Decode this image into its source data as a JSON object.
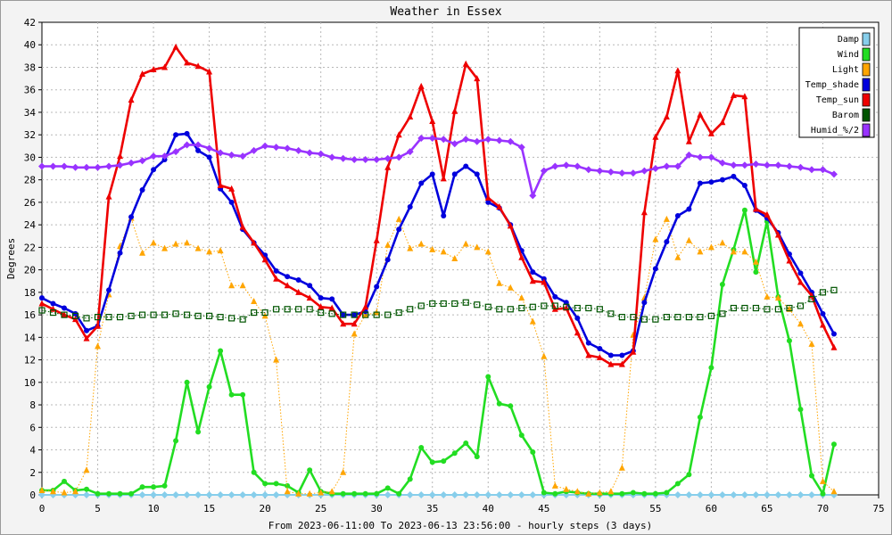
{
  "chart_data": {
    "type": "line",
    "title": "Weather in Essex",
    "xlabel": "From 2023-06-11:00 To 2023-06-13 23:56:00 - hourly steps (3 days)",
    "ylabel": "Degrees",
    "xlim": [
      0,
      75
    ],
    "ylim": [
      0,
      42
    ],
    "x_ticks": [
      0,
      5,
      10,
      15,
      20,
      25,
      30,
      35,
      40,
      45,
      50,
      55,
      60,
      65,
      70,
      75
    ],
    "y_ticks": [
      0,
      2,
      4,
      6,
      8,
      10,
      12,
      14,
      16,
      18,
      20,
      22,
      24,
      26,
      28,
      30,
      32,
      34,
      36,
      38,
      40,
      42
    ],
    "grid": true,
    "legend_position": "top-right",
    "x": [
      0,
      1,
      2,
      3,
      4,
      5,
      6,
      7,
      8,
      9,
      10,
      11,
      12,
      13,
      14,
      15,
      16,
      17,
      18,
      19,
      20,
      21,
      22,
      23,
      24,
      25,
      26,
      27,
      28,
      29,
      30,
      31,
      32,
      33,
      34,
      35,
      36,
      37,
      38,
      39,
      40,
      41,
      42,
      43,
      44,
      45,
      46,
      47,
      48,
      49,
      50,
      51,
      52,
      53,
      54,
      55,
      56,
      57,
      58,
      59,
      60,
      61,
      62,
      63,
      64,
      65,
      66,
      67,
      68,
      69,
      70,
      71
    ],
    "series": [
      {
        "name": "Damp",
        "color": "#87ceeb",
        "style": "solid",
        "marker": "diamond",
        "values": [
          0,
          0,
          0,
          0,
          0,
          0,
          0,
          0,
          0,
          0,
          0,
          0,
          0,
          0,
          0,
          0,
          0,
          0,
          0,
          0,
          0,
          0,
          0,
          0,
          0,
          0,
          0,
          0,
          0,
          0,
          0,
          0,
          0,
          0,
          0,
          0,
          0,
          0,
          0,
          0,
          0,
          0,
          0,
          0,
          0,
          0,
          0,
          0,
          0,
          0,
          0,
          0,
          0,
          0,
          0,
          0,
          0,
          0,
          0,
          0,
          0,
          0,
          0,
          0,
          0,
          0,
          0,
          0,
          0,
          0,
          0,
          0
        ]
      },
      {
        "name": "Wind",
        "color": "#22dd22",
        "style": "solid",
        "marker": "circle",
        "values": [
          0.4,
          0.4,
          1.2,
          0.4,
          0.5,
          0.1,
          0.1,
          0.1,
          0.1,
          0.7,
          0.7,
          0.8,
          4.8,
          10.0,
          5.6,
          9.6,
          12.8,
          8.9,
          8.9,
          2.0,
          1.0,
          1.0,
          0.8,
          0.2,
          2.2,
          0.3,
          0.1,
          0.1,
          0.1,
          0.1,
          0.1,
          0.6,
          0.1,
          1.4,
          4.2,
          2.9,
          3.0,
          3.7,
          4.6,
          3.4,
          10.5,
          8.1,
          7.9,
          5.3,
          3.8,
          0.2,
          0.1,
          0.3,
          0.2,
          0.1,
          0.1,
          0.1,
          0.1,
          0.2,
          0.1,
          0.1,
          0.2,
          1.0,
          1.8,
          6.9,
          11.3,
          18.7,
          21.8,
          25.3,
          19.8,
          24.3,
          17.6,
          13.7,
          7.6,
          1.7,
          0.1,
          4.5
        ]
      },
      {
        "name": "Light",
        "color": "#ffa500",
        "style": "dotted",
        "marker": "triangle",
        "values": [
          0.4,
          0.3,
          0.2,
          0.3,
          2.2,
          13.2,
          17.8,
          22.1,
          24.6,
          21.5,
          22.4,
          21.9,
          22.3,
          22.4,
          21.9,
          21.6,
          21.7,
          18.6,
          18.6,
          17.2,
          15.9,
          12.0,
          0.3,
          0.1,
          0.1,
          0.2,
          0.3,
          2.0,
          14.3,
          16.0,
          16.2,
          22.2,
          24.5,
          21.9,
          22.3,
          21.8,
          21.6,
          21.0,
          22.3,
          22.0,
          21.6,
          18.8,
          18.4,
          17.5,
          15.4,
          12.3,
          0.8,
          0.5,
          0.3,
          0.1,
          0.2,
          0.3,
          2.4,
          14.2,
          17.5,
          22.7,
          24.5,
          21.1,
          22.6,
          21.6,
          22.0,
          22.4,
          21.6,
          21.6,
          20.7,
          17.6,
          17.5,
          16.5,
          15.2,
          13.4,
          1.2,
          0.3
        ]
      },
      {
        "name": "Temp_shade",
        "color": "#0000dd",
        "style": "solid",
        "marker": "circle",
        "values": [
          17.5,
          17.0,
          16.6,
          16.1,
          14.6,
          15.0,
          18.2,
          21.5,
          24.7,
          27.1,
          28.9,
          29.8,
          32.0,
          32.1,
          30.6,
          30.0,
          27.2,
          26.0,
          23.6,
          22.4,
          21.3,
          19.9,
          19.4,
          19.1,
          18.6,
          17.5,
          17.4,
          16.0,
          16.0,
          16.3,
          18.5,
          20.9,
          23.6,
          25.6,
          27.7,
          28.5,
          24.8,
          28.5,
          29.2,
          28.5,
          26.0,
          25.5,
          24.0,
          21.7,
          19.8,
          19.2,
          17.6,
          17.1,
          15.7,
          13.5,
          13.0,
          12.4,
          12.4,
          12.8,
          17.1,
          20.1,
          22.5,
          24.8,
          25.4,
          27.7,
          27.8,
          28.0,
          28.3,
          27.5,
          25.3,
          24.6,
          23.3,
          21.4,
          19.7,
          18.0,
          16.1,
          14.3
        ]
      },
      {
        "name": "Temp_sun",
        "color": "#ee0000",
        "style": "solid",
        "marker": "triangle",
        "values": [
          17.0,
          16.5,
          16.0,
          15.6,
          13.9,
          15.0,
          26.5,
          30.1,
          35.1,
          37.4,
          37.8,
          38.0,
          39.8,
          38.4,
          38.1,
          37.6,
          27.5,
          27.2,
          23.8,
          22.4,
          20.9,
          19.2,
          18.6,
          18.0,
          17.5,
          16.7,
          16.6,
          15.2,
          15.2,
          16.7,
          22.6,
          29.1,
          32.0,
          33.6,
          36.3,
          33.2,
          28.1,
          34.1,
          38.3,
          37.0,
          26.4,
          25.6,
          23.9,
          21.1,
          19.0,
          18.9,
          16.5,
          16.6,
          14.4,
          12.4,
          12.2,
          11.6,
          11.6,
          12.7,
          25.1,
          31.8,
          33.6,
          37.7,
          31.4,
          33.8,
          32.1,
          33.1,
          35.5,
          35.4,
          25.4,
          24.9,
          23.1,
          20.8,
          18.9,
          17.7,
          15.1,
          13.1
        ]
      },
      {
        "name": "Barom",
        "color": "#005500",
        "style": "dotted",
        "marker": "square",
        "values": [
          16.4,
          16.2,
          16.0,
          15.9,
          15.7,
          15.8,
          15.8,
          15.8,
          15.9,
          16.0,
          16.0,
          16.0,
          16.1,
          16.0,
          15.9,
          15.9,
          15.8,
          15.7,
          15.6,
          16.2,
          16.2,
          16.5,
          16.5,
          16.5,
          16.5,
          16.2,
          16.1,
          16.0,
          16.0,
          16.0,
          16.0,
          16.0,
          16.2,
          16.5,
          16.8,
          17.0,
          17.0,
          17.0,
          17.1,
          16.9,
          16.7,
          16.5,
          16.5,
          16.6,
          16.7,
          16.8,
          16.8,
          16.7,
          16.6,
          16.6,
          16.5,
          16.1,
          15.8,
          15.8,
          15.6,
          15.6,
          15.8,
          15.8,
          15.8,
          15.8,
          15.9,
          16.1,
          16.6,
          16.6,
          16.6,
          16.5,
          16.5,
          16.6,
          16.8,
          17.4,
          18.0,
          18.2
        ]
      },
      {
        "name": "Humid_%/2",
        "color": "#9933ff",
        "style": "solid",
        "marker": "diamond",
        "values": [
          29.2,
          29.2,
          29.2,
          29.1,
          29.1,
          29.1,
          29.2,
          29.3,
          29.5,
          29.7,
          30.1,
          30.1,
          30.5,
          31.1,
          31.1,
          30.8,
          30.4,
          30.2,
          30.1,
          30.6,
          31.0,
          30.9,
          30.8,
          30.6,
          30.4,
          30.3,
          30.0,
          29.9,
          29.8,
          29.8,
          29.8,
          29.9,
          30.0,
          30.5,
          31.7,
          31.7,
          31.6,
          31.2,
          31.6,
          31.4,
          31.6,
          31.5,
          31.4,
          30.9,
          26.6,
          28.8,
          29.2,
          29.3,
          29.2,
          28.9,
          28.8,
          28.7,
          28.6,
          28.6,
          28.8,
          29.0,
          29.2,
          29.2,
          30.2,
          30.0,
          30.0,
          29.5,
          29.3,
          29.3,
          29.4,
          29.3,
          29.3,
          29.2,
          29.1,
          28.9,
          28.9,
          28.5
        ]
      }
    ]
  }
}
